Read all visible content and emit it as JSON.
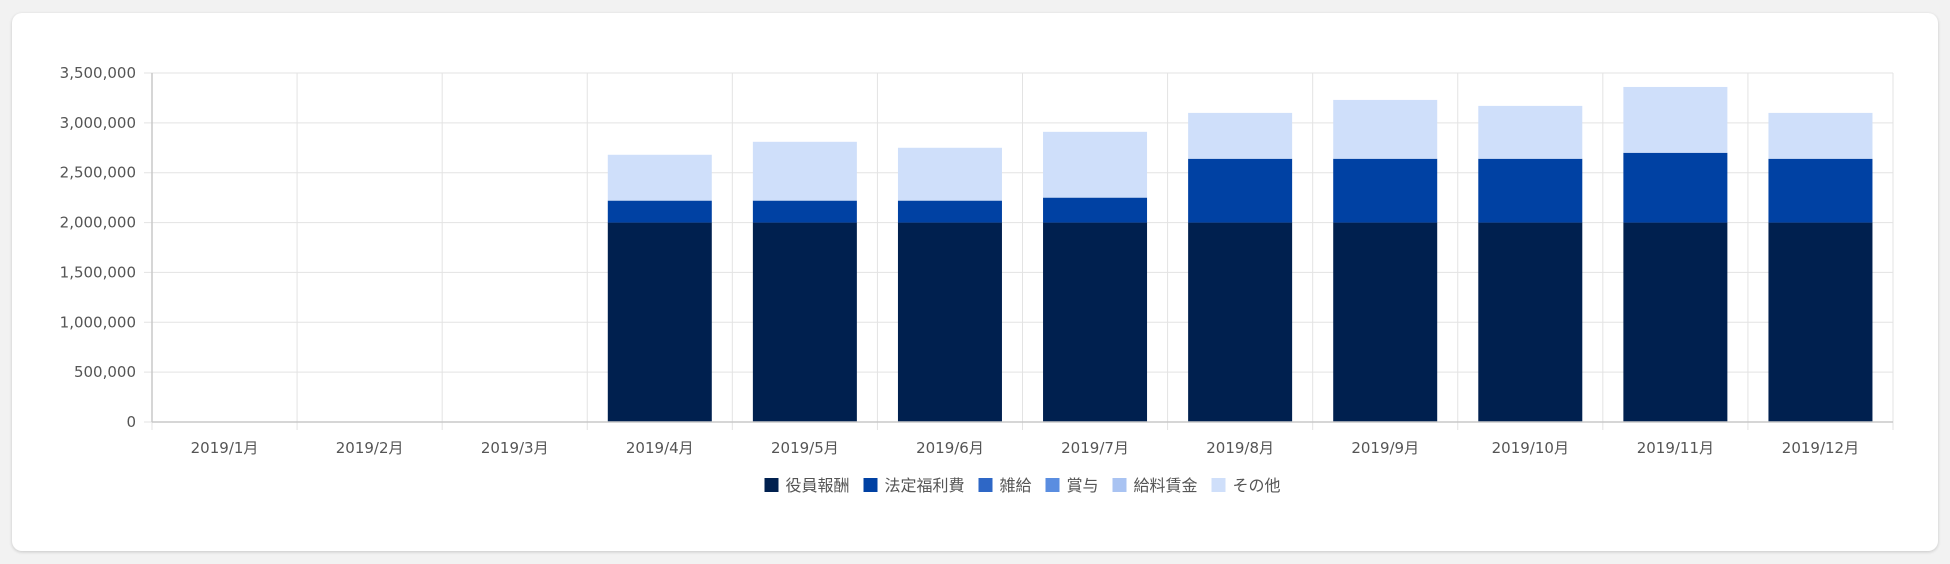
{
  "chart_data": {
    "type": "bar",
    "stacked": true,
    "categories": [
      "2019/1月",
      "2019/2月",
      "2019/3月",
      "2019/4月",
      "2019/5月",
      "2019/6月",
      "2019/7月",
      "2019/8月",
      "2019/9月",
      "2019/10月",
      "2019/11月",
      "2019/12月"
    ],
    "series": [
      {
        "name": "役員報酬",
        "color": "#00204f",
        "values": [
          0,
          0,
          0,
          2000000,
          2000000,
          2000000,
          2000000,
          2000000,
          2000000,
          2000000,
          2000000,
          2000000
        ]
      },
      {
        "name": "法定福利費",
        "color": "#0041a3",
        "values": [
          0,
          0,
          0,
          220000,
          220000,
          220000,
          250000,
          640000,
          640000,
          640000,
          700000,
          640000
        ]
      },
      {
        "name": "雑給",
        "color": "#2e67c6",
        "values": [
          0,
          0,
          0,
          0,
          0,
          0,
          0,
          0,
          0,
          0,
          0,
          0
        ]
      },
      {
        "name": "賞与",
        "color": "#5a8de0",
        "values": [
          0,
          0,
          0,
          0,
          0,
          0,
          0,
          0,
          0,
          0,
          0,
          0
        ]
      },
      {
        "name": "給料賃金",
        "color": "#a9c3f2",
        "values": [
          0,
          0,
          0,
          0,
          0,
          0,
          0,
          0,
          0,
          0,
          0,
          0
        ]
      },
      {
        "name": "その他",
        "color": "#cfdffa",
        "values": [
          0,
          0,
          0,
          460000,
          590000,
          530000,
          660000,
          460000,
          590000,
          530000,
          660000,
          460000
        ]
      }
    ],
    "yticks": [
      "0",
      "500,000",
      "1,000,000",
      "1,500,000",
      "2,000,000",
      "2,500,000",
      "3,000,000",
      "3,500,000"
    ],
    "ylim": [
      0,
      3500000
    ],
    "grid": true,
    "legend_position": "bottom"
  }
}
